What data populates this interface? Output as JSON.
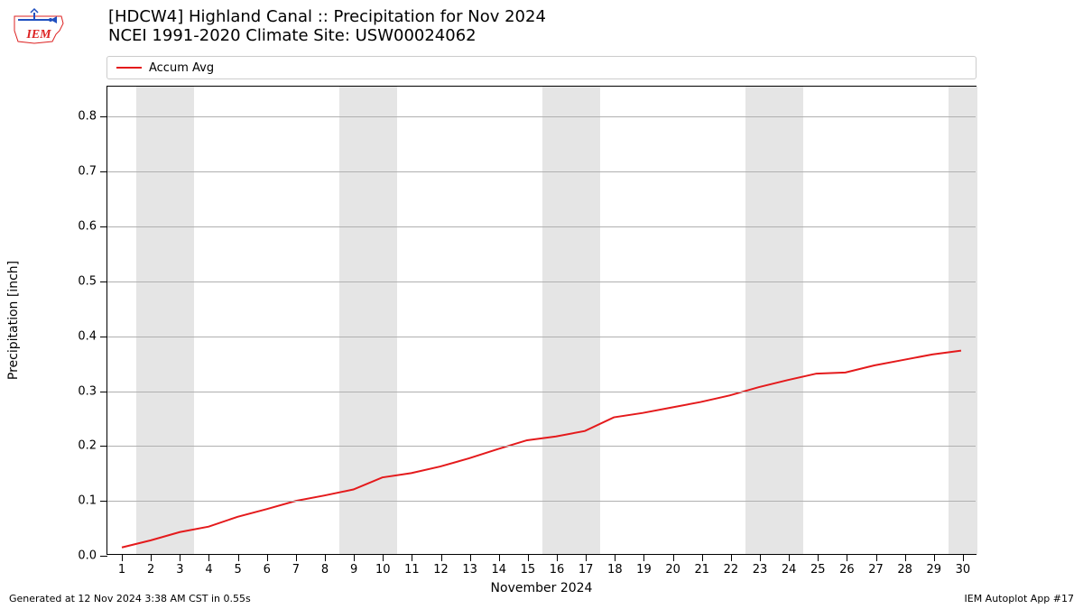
{
  "logo": {
    "text": "IEM",
    "text_color": "#d22",
    "border_color": "#d22",
    "accent_color": "#2050c0"
  },
  "title": {
    "line1": "[HDCW4] Highland Canal :: Precipitation for Nov 2024",
    "line2": "NCEI 1991-2020 Climate Site: USW00024062"
  },
  "legend": {
    "items": [
      {
        "label": "Accum Avg",
        "color": "#e41a1c"
      }
    ]
  },
  "chart": {
    "type": "line",
    "xlabel": "November 2024",
    "ylabel": "Precipitation [inch]",
    "xlim": [
      0.5,
      30.5
    ],
    "ylim": [
      0.0,
      0.855
    ],
    "ytick_step": 0.1,
    "yticks": [
      0.0,
      0.1,
      0.2,
      0.3,
      0.4,
      0.5,
      0.6,
      0.7,
      0.8
    ],
    "xticks": [
      1,
      2,
      3,
      4,
      5,
      6,
      7,
      8,
      9,
      10,
      11,
      12,
      13,
      14,
      15,
      16,
      17,
      18,
      19,
      20,
      21,
      22,
      23,
      24,
      25,
      26,
      27,
      28,
      29,
      30
    ],
    "grid_color": "#b0b0b0",
    "background_color": "#ffffff",
    "weekend_band_color": "#e5e5e5",
    "weekend_bands": [
      [
        2,
        3
      ],
      [
        9,
        10
      ],
      [
        16,
        17
      ],
      [
        23,
        24
      ],
      [
        30,
        30
      ]
    ],
    "line_color": "#e41a1c",
    "line_width": 2,
    "x_values": [
      1,
      2,
      3,
      4,
      5,
      6,
      7,
      8,
      9,
      10,
      11,
      12,
      13,
      14,
      15,
      16,
      17,
      18,
      19,
      20,
      21,
      22,
      23,
      24,
      25,
      26,
      27,
      28,
      29,
      30
    ],
    "y_values": [
      0.012,
      0.025,
      0.04,
      0.05,
      0.068,
      0.082,
      0.097,
      0.107,
      0.118,
      0.14,
      0.148,
      0.16,
      0.175,
      0.192,
      0.208,
      0.215,
      0.225,
      0.25,
      0.258,
      0.268,
      0.278,
      0.29,
      0.305,
      0.318,
      0.33,
      0.332,
      0.345,
      0.355,
      0.365,
      0.372
    ],
    "title_fontsize": 18,
    "label_fontsize": 14,
    "tick_fontsize": 13
  },
  "footer": {
    "left": "Generated at 12 Nov 2024 3:38 AM CST in 0.55s",
    "right": "IEM Autoplot App #17"
  }
}
